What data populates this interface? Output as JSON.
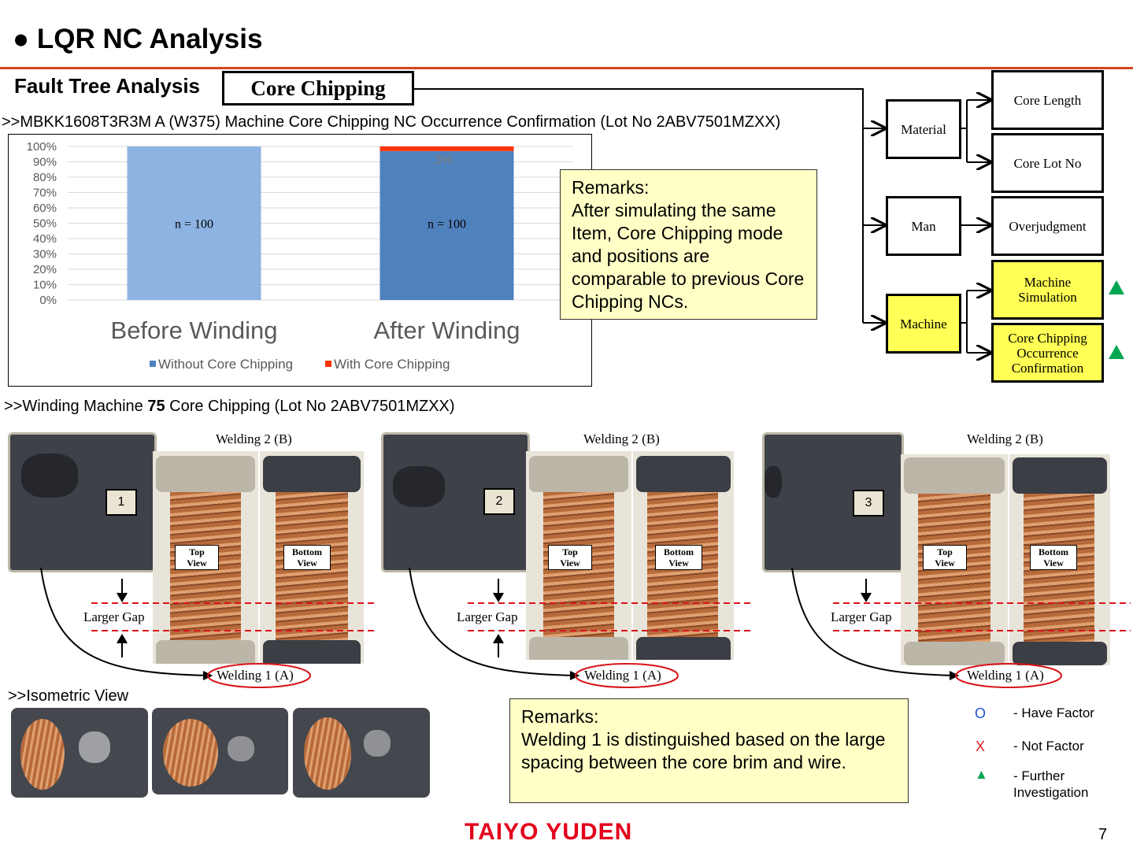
{
  "header": {
    "title": "● LQR NC Analysis"
  },
  "fta": {
    "label": "Fault Tree Analysis",
    "root": "Core Chipping",
    "categories": {
      "material": "Material",
      "man": "Man",
      "machine": "Machine"
    },
    "leaves": {
      "core_length": "Core Length",
      "core_lot_no": "Core Lot No",
      "overjudgment": "Overjudgment",
      "machine_simulation": "Machine Simulation",
      "core_chipping_confirmation": "Core Chipping Occurrence Confirmation"
    },
    "markers": [
      "triangle-icon",
      "triangle-icon"
    ]
  },
  "chart_section": {
    "heading": ">>MBKK1608T3R3M A (W375) Machine Core Chipping NC Occurrence Confirmation (Lot No 2ABV7501MZXX)"
  },
  "chart_data": {
    "type": "bar",
    "stacked": true,
    "categories": [
      "Before Winding",
      "After Winding"
    ],
    "series": [
      {
        "name": "Without Core Chipping",
        "values": [
          100,
          97
        ],
        "color": "#8db3e2"
      },
      {
        "name": "With Core Chipping",
        "values": [
          0,
          3
        ],
        "color": "#ff3300"
      }
    ],
    "bar_colors": [
      "#8db3e2",
      "#4f81bd"
    ],
    "data_labels": [
      "n = 100",
      "n = 100"
    ],
    "top_label": "3%",
    "yticks": [
      "100%",
      "90%",
      "80%",
      "70%",
      "60%",
      "50%",
      "40%",
      "30%",
      "20%",
      "10%",
      "0%"
    ],
    "ylim": [
      0,
      100
    ],
    "legend_position": "bottom"
  },
  "remarks1": {
    "title": "Remarks:",
    "body": "After simulating the same Item, Core Chipping mode and positions are comparable to previous Core Chipping NCs."
  },
  "winding_section": {
    "heading_pre": ">>Winding Machine ",
    "heading_bold": "75",
    "heading_post": " Core Chipping (Lot No 2ABV7501MZXX)",
    "samples": [
      {
        "num": "1",
        "welding2": "Welding 2 (B)",
        "welding1": "Welding 1 (A)",
        "gap": "Larger Gap",
        "top": "Top View",
        "bottom": "Bottom View"
      },
      {
        "num": "2",
        "welding2": "Welding 2 (B)",
        "welding1": "Welding 1 (A)",
        "gap": "Larger Gap",
        "top": "Top View",
        "bottom": "Bottom View"
      },
      {
        "num": "3",
        "welding2": "Welding 2 (B)",
        "welding1": "Welding 1 (A)",
        "gap": "Larger Gap",
        "top": "Top View",
        "bottom": "Bottom View"
      }
    ]
  },
  "isometric": {
    "heading": ">>Isometric View"
  },
  "remarks2": {
    "title": "Remarks:",
    "body": "Welding 1 is distinguished based on the large spacing between the core brim and wire."
  },
  "legend": [
    {
      "symbol": "O",
      "label": "- Have Factor",
      "color": "#1f4fd1"
    },
    {
      "symbol": "X",
      "label": "- Not Factor",
      "color": "#e21b1b"
    },
    {
      "symbol": "▲",
      "label": "- Further Investigation",
      "color": "#00a651"
    }
  ],
  "footer": {
    "brand": "TAIYO YUDEN",
    "page": "7"
  },
  "colors": {
    "accent_line": "#d64520",
    "brand": "#e3001b"
  }
}
